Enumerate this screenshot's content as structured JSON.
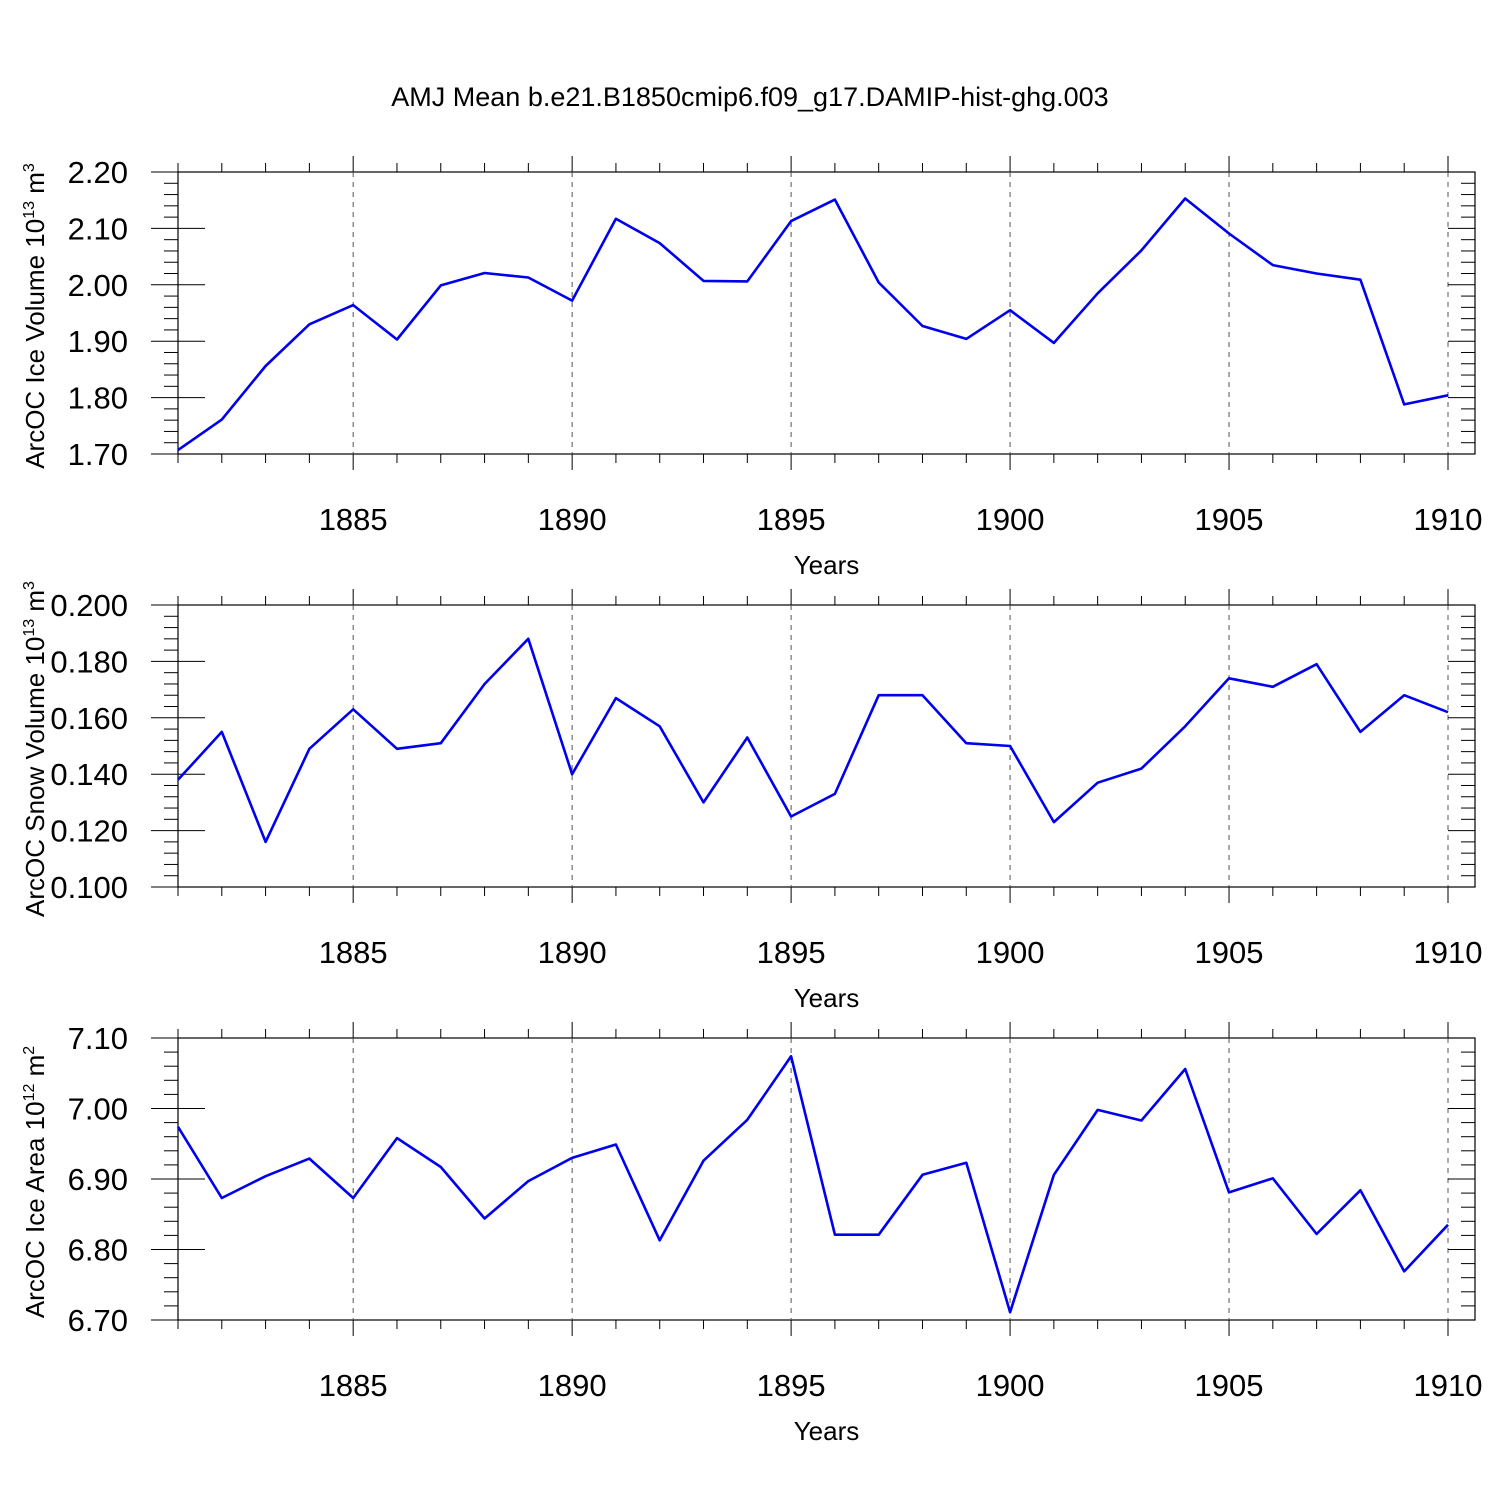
{
  "title": "AMJ Mean b.e21.B1850cmip6.f09_g17.DAMIP-hist-ghg.003",
  "chart_data": [
    {
      "type": "line",
      "ylabel": "ArcOC Ice Volume 10",
      "ylabel_sup": "13",
      "ylabel_unit": " m",
      "ylabel_unit_sup": "3",
      "xlabel": "Years",
      "xlim": [
        1881,
        1910
      ],
      "ylim": [
        1.7,
        2.2
      ],
      "yticks": [
        "1.70",
        "1.80",
        "1.90",
        "2.00",
        "2.10",
        "2.20"
      ],
      "xticks": [
        "1885",
        "1890",
        "1895",
        "1900",
        "1905",
        "1910"
      ],
      "grid": "vertical dashed at major x ticks",
      "color": "#0000ee",
      "x": [
        1881,
        1882,
        1883,
        1884,
        1885,
        1886,
        1887,
        1888,
        1889,
        1890,
        1891,
        1892,
        1893,
        1894,
        1895,
        1896,
        1897,
        1898,
        1899,
        1900,
        1901,
        1902,
        1903,
        1904,
        1905,
        1906,
        1907,
        1908,
        1909,
        1910
      ],
      "values": [
        1.707,
        1.761,
        1.856,
        1.93,
        1.964,
        1.903,
        1.999,
        2.021,
        2.013,
        1.972,
        2.117,
        2.074,
        2.007,
        2.006,
        2.113,
        2.151,
        2.004,
        1.927,
        1.904,
        1.955,
        1.897,
        1.985,
        2.061,
        2.153,
        2.091,
        2.035,
        2.02,
        2.009,
        1.788,
        1.804
      ]
    },
    {
      "type": "line",
      "ylabel": "ArcOC Snow Volume 10",
      "ylabel_sup": "13",
      "ylabel_unit": " m",
      "ylabel_unit_sup": "3",
      "xlabel": "Years",
      "xlim": [
        1881,
        1910
      ],
      "ylim": [
        0.1,
        0.2
      ],
      "yticks": [
        "0.100",
        "0.120",
        "0.140",
        "0.160",
        "0.180",
        "0.200"
      ],
      "xticks": [
        "1885",
        "1890",
        "1895",
        "1900",
        "1905",
        "1910"
      ],
      "grid": "vertical dashed at major x ticks",
      "color": "#0000ee",
      "x": [
        1881,
        1882,
        1883,
        1884,
        1885,
        1886,
        1887,
        1888,
        1889,
        1890,
        1891,
        1892,
        1893,
        1894,
        1895,
        1896,
        1897,
        1898,
        1899,
        1900,
        1901,
        1902,
        1903,
        1904,
        1905,
        1906,
        1907,
        1908,
        1909,
        1910
      ],
      "values": [
        0.138,
        0.155,
        0.116,
        0.149,
        0.163,
        0.149,
        0.151,
        0.172,
        0.188,
        0.14,
        0.167,
        0.157,
        0.13,
        0.153,
        0.125,
        0.133,
        0.168,
        0.168,
        0.151,
        0.15,
        0.123,
        0.137,
        0.142,
        0.157,
        0.174,
        0.171,
        0.179,
        0.155,
        0.168,
        0.162
      ]
    },
    {
      "type": "line",
      "ylabel": "ArcOC Ice Area 10",
      "ylabel_sup": "12",
      "ylabel_unit": " m",
      "ylabel_unit_sup": "2",
      "xlabel": "Years",
      "xlim": [
        1881,
        1910
      ],
      "ylim": [
        6.7,
        7.1
      ],
      "yticks": [
        "6.70",
        "6.80",
        "6.90",
        "7.00",
        "7.10"
      ],
      "xticks": [
        "1885",
        "1890",
        "1895",
        "1900",
        "1905",
        "1910"
      ],
      "grid": "vertical dashed at major x ticks",
      "color": "#0000ee",
      "x": [
        1881,
        1882,
        1883,
        1884,
        1885,
        1886,
        1887,
        1888,
        1889,
        1890,
        1891,
        1892,
        1893,
        1894,
        1895,
        1896,
        1897,
        1898,
        1899,
        1900,
        1901,
        1902,
        1903,
        1904,
        1905,
        1906,
        1907,
        1908,
        1909,
        1910
      ],
      "values": [
        6.974,
        6.873,
        6.904,
        6.929,
        6.873,
        6.958,
        6.917,
        6.844,
        6.897,
        6.93,
        6.949,
        6.813,
        6.926,
        6.984,
        7.074,
        6.821,
        6.821,
        6.906,
        6.923,
        6.711,
        6.906,
        6.998,
        6.983,
        7.056,
        6.881,
        6.901,
        6.822,
        6.884,
        6.769,
        6.835
      ]
    }
  ]
}
